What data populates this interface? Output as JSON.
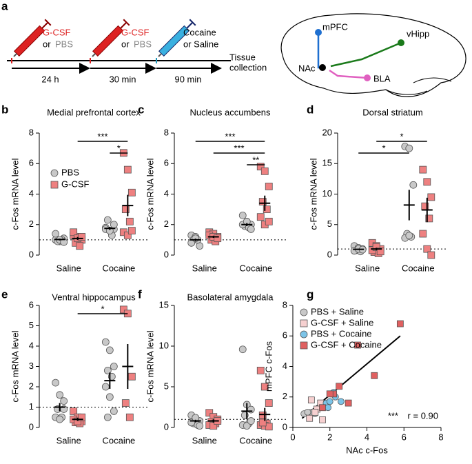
{
  "diagram": {
    "panel": "a",
    "syringe1": {
      "drug": "G-CSF",
      "or": "or",
      "alt": "PBS"
    },
    "syringe2": {
      "drug": "G-CSF",
      "or": "or",
      "alt": "PBS"
    },
    "syringe3": {
      "line1": "Cocaine",
      "line2": "or Saline"
    },
    "intervals": [
      "24 h",
      "30 min",
      "90 min"
    ],
    "end": [
      "Tissue",
      "collection"
    ],
    "regions": {
      "mpfc": "mPFC",
      "vhipp": "vHipp",
      "nac": "NAc",
      "bla": "BLA"
    }
  },
  "chart_data": [
    {
      "panel": "b",
      "type": "strip",
      "title": "Medial prefrontal cortex",
      "ylabel": "c-Fos mRNA level",
      "categories": [
        "Saline",
        "Cocaine"
      ],
      "ylim": [
        0,
        8
      ],
      "yticks": [
        0,
        2,
        4,
        6,
        8
      ],
      "reference": 1,
      "legend": "upper left",
      "series": [
        {
          "name": "PBS",
          "color": "#c8c8c8",
          "marker": "circle",
          "values": [
            [
              1.0,
              0.9,
              1.1,
              0.9,
              1.0,
              1.4,
              1.0,
              0.85
            ],
            [
              1.8,
              1.6,
              1.7,
              2.3,
              1.3,
              1.7,
              1.6,
              2.0
            ]
          ],
          "means": [
            1.02,
            1.75
          ],
          "sems": [
            0.06,
            0.1
          ]
        },
        {
          "name": "G-CSF",
          "color": "#ee8080",
          "marker": "square",
          "values": [
            [
              1.3,
              1.2,
              1.0,
              0.8,
              0.6,
              1.5,
              1.1,
              1.2
            ],
            [
              6.7,
              5.6,
              4.1,
              3.0,
              2.2,
              1.5,
              1.3,
              1.6
            ]
          ],
          "means": [
            1.09,
            3.25
          ],
          "sems": [
            0.1,
            0.7
          ]
        }
      ],
      "brackets": [
        {
          "label": "*",
          "from": [
            1,
            0
          ],
          "to": [
            1,
            1
          ]
        },
        {
          "label": "***",
          "from": [
            0,
            1
          ],
          "to": [
            1,
            1
          ]
        }
      ]
    },
    {
      "panel": "c",
      "type": "strip",
      "title": "Nucleus accumbens",
      "ylabel": "c-Fos mRNA level",
      "categories": [
        "Saline",
        "Cocaine"
      ],
      "ylim": [
        0,
        8
      ],
      "yticks": [
        0,
        2,
        4,
        6,
        8
      ],
      "reference": 1,
      "series": [
        {
          "name": "PBS",
          "color": "#c8c8c8",
          "marker": "circle",
          "values": [
            [
              1.3,
              1.2,
              0.6,
              1.0,
              1.0,
              0.8,
              1.1
            ],
            [
              2.6,
              2.1,
              2.0,
              1.9,
              1.8,
              2.0,
              2.2,
              1.7
            ]
          ],
          "means": [
            1.0,
            2.0
          ],
          "sems": [
            0.08,
            0.1
          ]
        },
        {
          "name": "G-CSF",
          "color": "#ee8080",
          "marker": "square",
          "values": [
            [
              1.5,
              1.4,
              1.2,
              1.0,
              0.9,
              1.3,
              1.2,
              1.1
            ],
            [
              5.8,
              5.5,
              4.5,
              3.5,
              3.0,
              2.5,
              2.0,
              2.2
            ]
          ],
          "means": [
            1.2,
            3.4
          ],
          "sems": [
            0.07,
            0.5
          ]
        }
      ],
      "brackets": [
        {
          "label": "**",
          "from": [
            1,
            0
          ],
          "to": [
            1,
            1
          ]
        },
        {
          "label": "***",
          "from": [
            0,
            1
          ],
          "to": [
            1,
            1
          ]
        },
        {
          "label": "***",
          "from": [
            0,
            0
          ],
          "to": [
            1,
            1
          ]
        }
      ]
    },
    {
      "panel": "d",
      "type": "strip",
      "title": "Dorsal striatum",
      "ylabel": "c-Fos mRNA level",
      "categories": [
        "Saline",
        "Cocaine"
      ],
      "ylim": [
        0,
        20
      ],
      "yticks": [
        0,
        5,
        10,
        15,
        20
      ],
      "reference": 1,
      "series": [
        {
          "name": "PBS",
          "color": "#c8c8c8",
          "marker": "circle",
          "values": [
            [
              1.5,
              1.2,
              1.0,
              0.8,
              0.6,
              0.7,
              1.0,
              0.9
            ],
            [
              17.8,
              17.5,
              11.5,
              3.5,
              3.0,
              2.8,
              3.2
            ]
          ],
          "means": [
            0.95,
            8.2
          ],
          "sems": [
            0.1,
            2.5
          ]
        },
        {
          "name": "G-CSF",
          "color": "#ee8080",
          "marker": "square",
          "values": [
            [
              2.0,
              1.5,
              1.0,
              0.5,
              0.3,
              0.8,
              1.3,
              0.6
            ],
            [
              14.0,
              12.0,
              9.5,
              8.0,
              6.0,
              3.5,
              1.0,
              0.0
            ]
          ],
          "means": [
            1.0,
            7.4
          ],
          "sems": [
            0.2,
            2.0
          ]
        }
      ],
      "brackets": [
        {
          "label": "*",
          "from": [
            0,
            0
          ],
          "to": [
            1,
            0
          ]
        },
        {
          "label": "*",
          "from": [
            0,
            1
          ],
          "to": [
            1,
            1
          ]
        }
      ]
    },
    {
      "panel": "e",
      "type": "strip",
      "title": "Ventral hippocampus",
      "ylabel": "c-Fos mRNA level",
      "categories": [
        "Saline",
        "Cocaine"
      ],
      "ylim": [
        0,
        6
      ],
      "yticks": [
        0,
        1,
        2,
        3,
        4,
        5,
        6
      ],
      "reference": 1,
      "series": [
        {
          "name": "PBS",
          "color": "#c8c8c8",
          "marker": "circle",
          "values": [
            [
              2.2,
              1.6,
              1.3,
              0.9,
              0.5,
              0.5,
              0.4,
              0.9
            ],
            [
              4.2,
              3.8,
              3.0,
              2.8,
              2.5,
              2.0,
              1.5,
              0.8,
              0.5
            ]
          ],
          "means": [
            1.0,
            2.3
          ],
          "sems": [
            0.2,
            0.4
          ]
        },
        {
          "name": "G-CSF",
          "color": "#ee8080",
          "marker": "square",
          "values": [
            [
              0.8,
              0.5,
              0.3,
              0.25,
              0.2,
              0.4,
              0.3,
              0.5
            ],
            [
              5.8,
              5.6,
              2.5,
              1.2,
              0.5
            ]
          ],
          "means": [
            0.4,
            3.0
          ],
          "sems": [
            0.08,
            1.1
          ]
        }
      ],
      "brackets": [
        {
          "label": "*",
          "from": [
            0,
            1
          ],
          "to": [
            1,
            1
          ]
        }
      ]
    },
    {
      "panel": "f",
      "type": "strip",
      "title": "Basolateral amygdala",
      "ylabel": "c-Fos mRNA level",
      "categories": [
        "Saline",
        "Cocaine"
      ],
      "ylim": [
        0,
        15
      ],
      "yticks": [
        0,
        5,
        10,
        15
      ],
      "reference": 1,
      "series": [
        {
          "name": "PBS",
          "color": "#c8c8c8",
          "marker": "circle",
          "values": [
            [
              1.5,
              1.0,
              0.8,
              0.5,
              0.3,
              0.6,
              1.2,
              0.2
            ],
            [
              9.6,
              2.8,
              2.2,
              1.5,
              0.5,
              0.3,
              0.2,
              0.8
            ]
          ],
          "means": [
            0.8,
            2.0
          ],
          "sems": [
            0.15,
            1.0
          ]
        },
        {
          "name": "G-CSF",
          "color": "#ee8080",
          "marker": "square",
          "values": [
            [
              1.8,
              1.3,
              1.0,
              0.7,
              0.5,
              0.3,
              0.2,
              0.8
            ],
            [
              7.0,
              5.0,
              3.0,
              1.5,
              0.5,
              0.3,
              0.2,
              0.1,
              0.6
            ]
          ],
          "means": [
            0.8,
            1.6
          ],
          "sems": [
            0.2,
            0.8
          ]
        }
      ],
      "brackets": []
    },
    {
      "panel": "g",
      "type": "scatter",
      "xlabel": "NAc c-Fos",
      "ylabel": "mPFC c-Fos",
      "xlim": [
        0,
        8
      ],
      "ylim": [
        0,
        8
      ],
      "xticks": [
        0,
        2,
        4,
        6,
        8
      ],
      "yticks": [
        0,
        2,
        4,
        6,
        8
      ],
      "legend": "upper left",
      "significance": "***",
      "r_label": "r = 0.90",
      "series": [
        {
          "name": "PBS + Saline",
          "color": "#c8c8c8",
          "marker": "circle",
          "x": [
            0.6,
            1.0,
            1.0,
            1.3,
            1.2,
            0.8
          ],
          "y": [
            0.9,
            0.9,
            1.0,
            1.2,
            0.9,
            1.0
          ]
        },
        {
          "name": "G-CSF + Saline",
          "color": "#f6d0d0",
          "marker": "square",
          "x": [
            1.0,
            1.5,
            1.3,
            1.6,
            1.2,
            0.9
          ],
          "y": [
            1.8,
            1.6,
            1.2,
            0.5,
            1.0,
            0.6
          ]
        },
        {
          "name": "PBS + Cocaine",
          "color": "#7cc4e8",
          "marker": "circle",
          "x": [
            1.8,
            2.0,
            2.3,
            2.6,
            1.9,
            2.2
          ],
          "y": [
            1.6,
            1.7,
            2.0,
            1.7,
            1.3,
            2.3
          ]
        },
        {
          "name": "G-CSF + Cocaine",
          "color": "#e06060",
          "marker": "square",
          "x": [
            5.8,
            3.5,
            4.4,
            2.5,
            2.2,
            2.0,
            3.0,
            1.6
          ],
          "y": [
            6.8,
            5.4,
            3.4,
            2.7,
            2.2,
            2.2,
            1.6,
            1.3
          ]
        }
      ],
      "fit": {
        "x": [
          0.5,
          5.8
        ],
        "y": [
          0.6,
          6.0
        ]
      }
    }
  ]
}
